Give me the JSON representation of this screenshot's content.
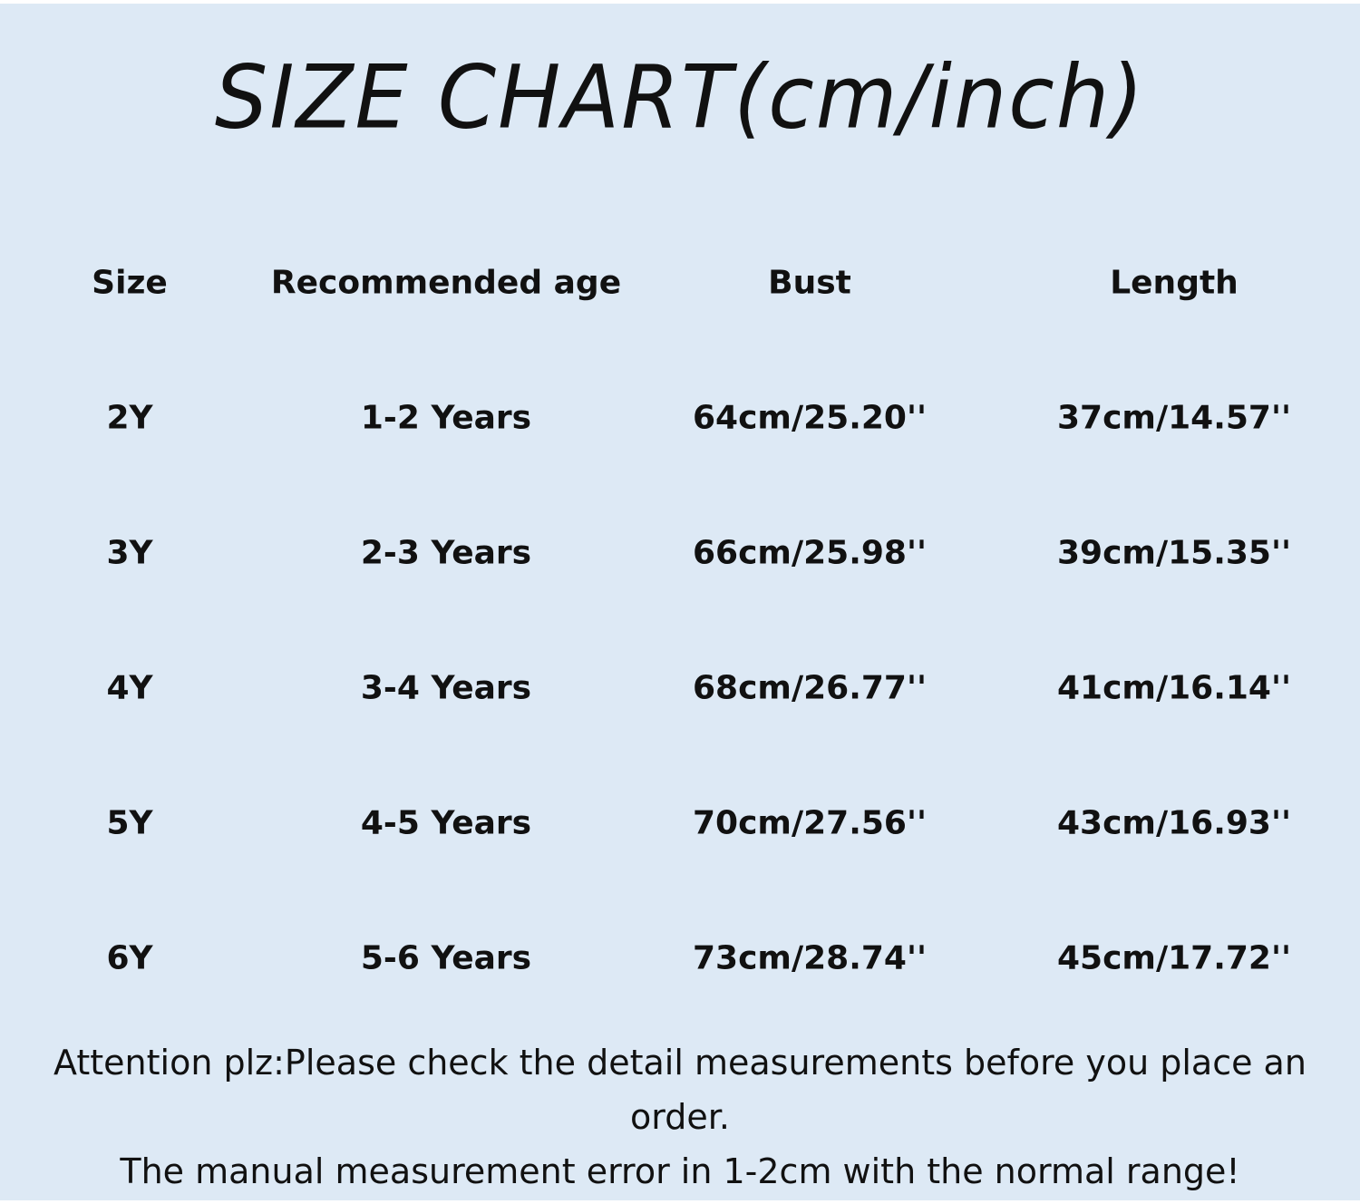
{
  "title": "SIZE CHART(cm/inch)",
  "table": {
    "headers": [
      "Size",
      "Recommended age",
      "Bust",
      "Length"
    ],
    "rows": [
      [
        "2Y",
        "1-2 Years",
        "64cm/25.20''",
        "37cm/14.57''"
      ],
      [
        "3Y",
        "2-3 Years",
        "66cm/25.98''",
        "39cm/15.35''"
      ],
      [
        "4Y",
        "3-4 Years",
        "68cm/26.77''",
        "41cm/16.14''"
      ],
      [
        "5Y",
        "4-5 Years",
        "70cm/27.56''",
        "43cm/16.93''"
      ],
      [
        "6Y",
        "5-6 Years",
        "73cm/28.74''",
        "45cm/17.72''"
      ]
    ]
  },
  "notes": {
    "line1": "Attention plz:Please check the detail measurements before you place an",
    "line2": "order.",
    "line3": "The manual measurement error in 1-2cm with the normal range!"
  },
  "colors": {
    "background": "#dde9f5",
    "text": "#111111"
  }
}
